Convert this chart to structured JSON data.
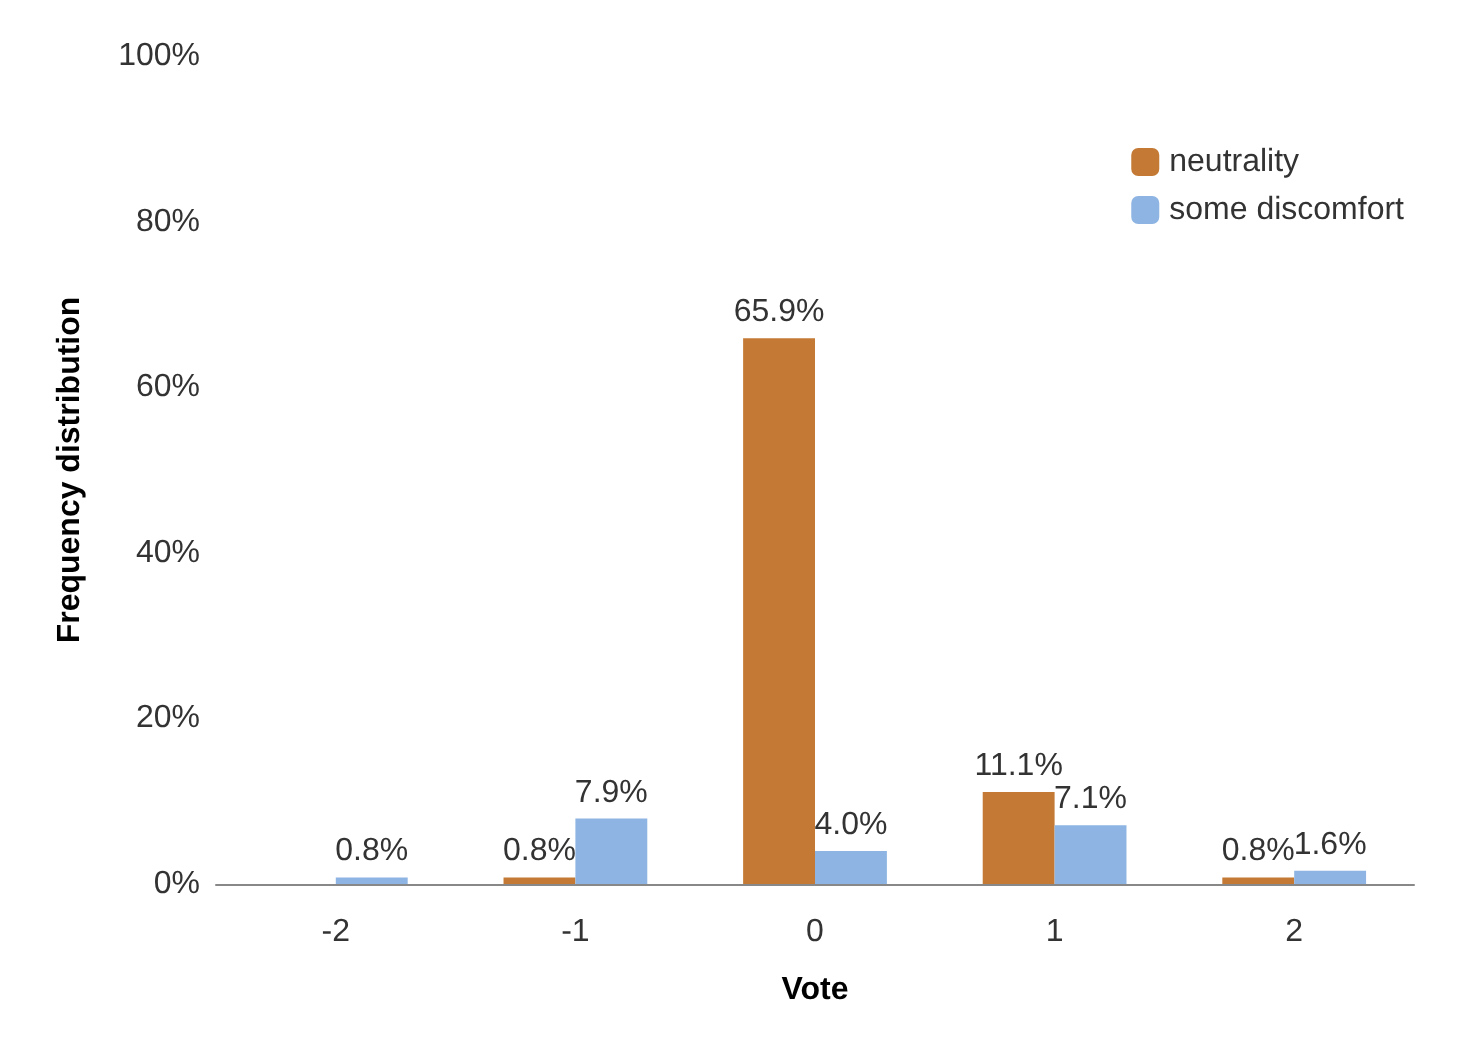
{
  "chart_data": {
    "type": "bar",
    "xlabel": "Vote",
    "ylabel": "Frequency distribution",
    "categories": [
      "-2",
      "-1",
      "0",
      "1",
      "2"
    ],
    "series": [
      {
        "name": "neutrality",
        "color": "#c47a34",
        "values": [
          null,
          0.8,
          65.9,
          11.1,
          0.8
        ],
        "value_labels": [
          null,
          "0.8%",
          "65.9%",
          "11.1%",
          "0.8%"
        ]
      },
      {
        "name": "some discomfort",
        "color": "#8db4e2",
        "values": [
          0.8,
          7.9,
          4.0,
          7.1,
          1.6
        ],
        "value_labels": [
          "0.8%",
          "7.9%",
          "4.0%",
          "7.1%",
          "1.6%"
        ]
      }
    ],
    "ylim": [
      0,
      100
    ],
    "yticks": [
      {
        "value": 0,
        "label": "0%"
      },
      {
        "value": 20,
        "label": "20%"
      },
      {
        "value": 40,
        "label": "40%"
      },
      {
        "value": 60,
        "label": "60%"
      },
      {
        "value": 80,
        "label": "80%"
      },
      {
        "value": 100,
        "label": "100%"
      }
    ],
    "grid": false,
    "legend": "top right"
  }
}
